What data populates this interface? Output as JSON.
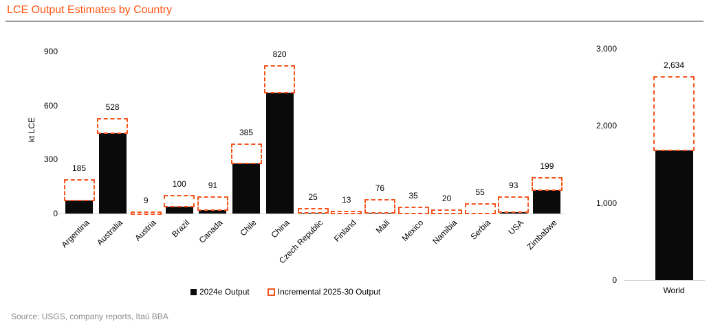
{
  "title": "LCE Output Estimates by Country",
  "source": "Source: USGS, company reports, Itaú BBA",
  "colors": {
    "title_orange": "#FF5310",
    "dash_orange": "#F4541C",
    "bar_black": "#0a0a0a",
    "axis_gray": "#d6d6d6",
    "rule_gray": "#9a9a9a",
    "source_gray": "#8c8c8c"
  },
  "legend": [
    {
      "label": "2024e Output",
      "swatch": "solid-black-square"
    },
    {
      "label": "Incremental 2025-30 Output",
      "swatch": "dashed-orange-square"
    }
  ],
  "chart_data": [
    {
      "type": "bar",
      "name": "by-country",
      "ylabel": "kt LCE",
      "ylim": [
        0,
        900
      ],
      "grid": false,
      "legend_position": "bottom",
      "yticks": [
        0,
        300,
        600,
        900
      ],
      "ytick_labels": [
        "0",
        "300",
        "600",
        "900"
      ],
      "categories": [
        "Argentina",
        "Australia",
        "Austria",
        "Brazil",
        "Canada",
        "Chile",
        "China",
        "Czech Republic",
        "Finland",
        "Mali",
        "Mexico",
        "Namibia",
        "Serbia",
        "USA",
        "Zimbabwe"
      ],
      "series": [
        {
          "name": "2024e Output",
          "values": [
            72,
            445,
            1,
            38,
            18,
            280,
            670,
            4,
            1,
            2,
            1,
            1,
            1,
            8,
            130
          ]
        },
        {
          "name": "Incremental 2025-30 Output",
          "values": [
            113,
            83,
            8,
            62,
            73,
            105,
            150,
            21,
            12,
            74,
            34,
            19,
            54,
            85,
            69
          ]
        }
      ],
      "totals": [
        185,
        528,
        9,
        100,
        91,
        385,
        820,
        25,
        13,
        76,
        35,
        20,
        55,
        93,
        199
      ],
      "total_labels": [
        "185",
        "528",
        "9",
        "100",
        "91",
        "385",
        "820",
        "25",
        "13",
        "76",
        "35",
        "20",
        "55",
        "93",
        "199"
      ]
    },
    {
      "type": "bar",
      "name": "world",
      "ylabel": "",
      "ylim": [
        0,
        3000
      ],
      "grid": false,
      "yticks": [
        0,
        1000,
        2000,
        3000
      ],
      "ytick_labels": [
        "0",
        "1,000",
        "2,000",
        "3,000"
      ],
      "categories": [
        "World"
      ],
      "series": [
        {
          "name": "2024e Output",
          "values": [
            1680
          ]
        },
        {
          "name": "Incremental 2025-30 Output",
          "values": [
            954
          ]
        }
      ],
      "totals": [
        2634
      ],
      "total_labels": [
        "2,634"
      ]
    }
  ]
}
